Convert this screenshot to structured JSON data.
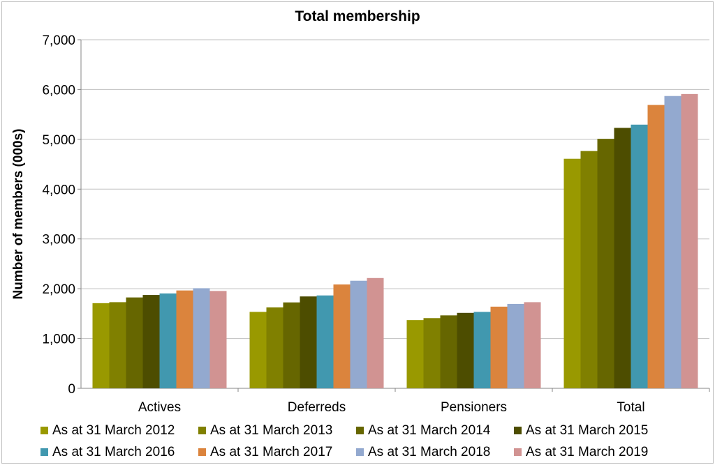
{
  "chart_data": {
    "type": "bar",
    "title": "Total membership",
    "xlabel": "",
    "ylabel": "Number of members (000s)",
    "ylim": [
      0,
      7000
    ],
    "yticks": [
      "0",
      "1,000",
      "2,000",
      "3,000",
      "4,000",
      "5,000",
      "6,000",
      "7,000"
    ],
    "grid": true,
    "legend_position": "bottom",
    "categories": [
      "Actives",
      "Deferreds",
      "Pensioners",
      "Total"
    ],
    "series": [
      {
        "name": "As at 31 March 2012",
        "color": "#999900",
        "values": [
          1710,
          1535,
          1370,
          4610
        ]
      },
      {
        "name": "As at 31 March 2013",
        "color": "#808000",
        "values": [
          1730,
          1625,
          1410,
          4765
        ]
      },
      {
        "name": "As at 31 March 2014",
        "color": "#666600",
        "values": [
          1825,
          1725,
          1465,
          5010
        ]
      },
      {
        "name": "As at 31 March 2015",
        "color": "#4d4d00",
        "values": [
          1875,
          1845,
          1515,
          5230
        ]
      },
      {
        "name": "As at 31 March 2016",
        "color": "#4198af",
        "values": [
          1905,
          1865,
          1535,
          5295
        ]
      },
      {
        "name": "As at 31 March 2017",
        "color": "#db843d",
        "values": [
          1965,
          2085,
          1640,
          5690
        ]
      },
      {
        "name": "As at 31 March 2018",
        "color": "#93a9cf",
        "values": [
          2010,
          2160,
          1695,
          5870
        ]
      },
      {
        "name": "As at 31 March 2019",
        "color": "#d19392",
        "values": [
          1955,
          2215,
          1730,
          5910
        ]
      }
    ]
  }
}
